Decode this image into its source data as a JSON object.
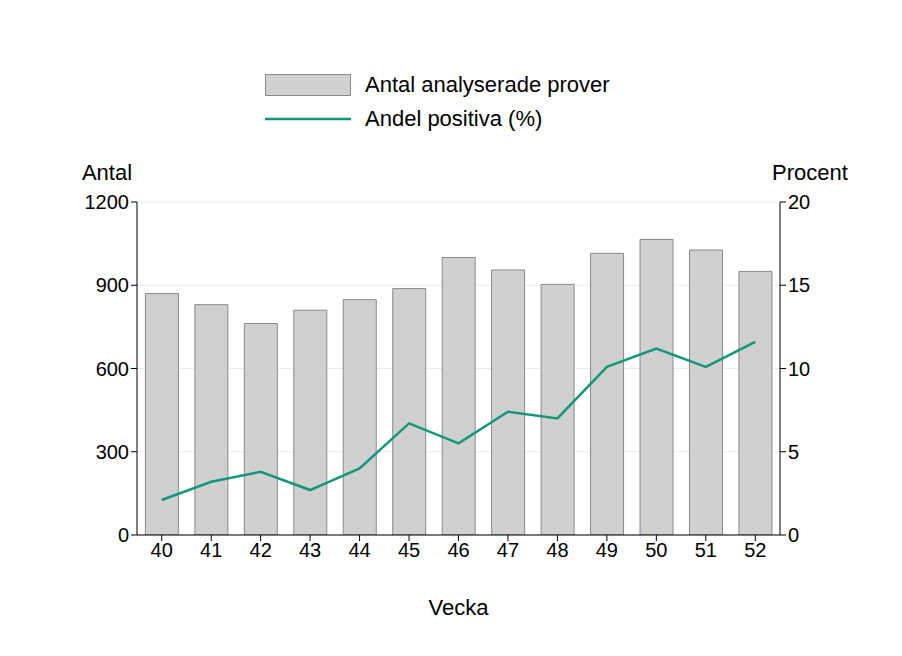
{
  "chart_data": {
    "type": "bar",
    "categories": [
      "40",
      "41",
      "42",
      "43",
      "44",
      "45",
      "46",
      "47",
      "48",
      "49",
      "50",
      "51",
      "52"
    ],
    "x_label": "Vecka",
    "y_label": "Antal",
    "y2_label": "Procent",
    "ylim": [
      0,
      1200
    ],
    "yticks": [
      0,
      300,
      600,
      900,
      1200
    ],
    "y2lim": [
      0,
      20
    ],
    "y2ticks": [
      0,
      5,
      10,
      15,
      20
    ],
    "grid": true,
    "legend": "top",
    "series": [
      {
        "name": "Antal analyserade prover",
        "type": "bar",
        "color": "#d0d0d0",
        "values": [
          870,
          830,
          762,
          810,
          848,
          888,
          1000,
          955,
          903,
          1015,
          1065,
          1027,
          950
        ]
      },
      {
        "name": "Andel positiva (%)",
        "type": "line",
        "color": "#13977a",
        "axis": "y2",
        "values": [
          2.1,
          3.2,
          3.8,
          2.7,
          4.0,
          6.7,
          5.5,
          7.4,
          7.0,
          10.1,
          11.2,
          10.1,
          11.6
        ]
      }
    ]
  }
}
